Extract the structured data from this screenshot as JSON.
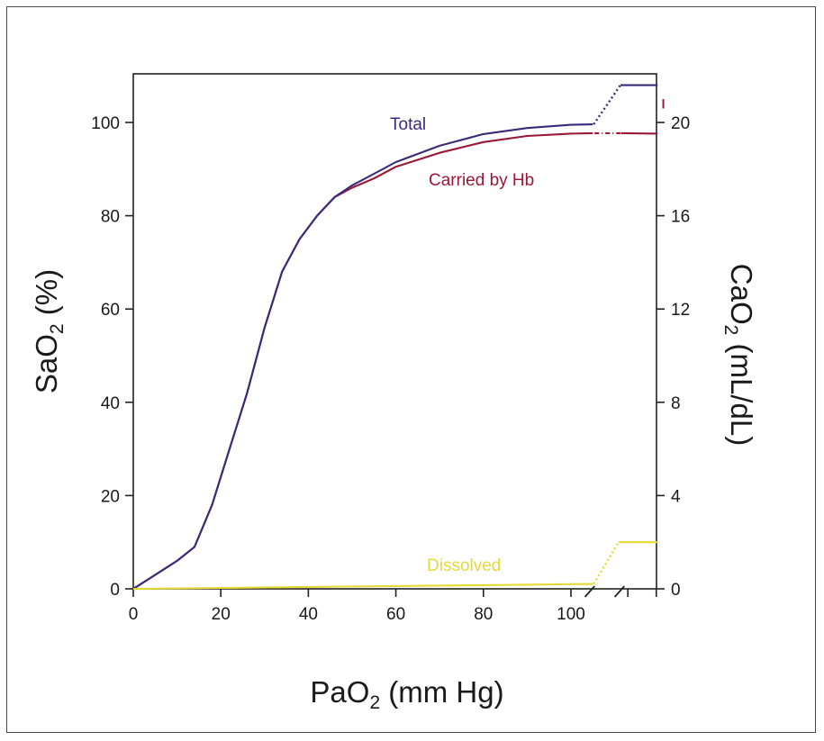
{
  "chart_data": {
    "type": "line",
    "y_axis_left": {
      "label_main": "SaO",
      "label_sub": "2",
      "label_rest": " (%)",
      "ticks": [
        0,
        20,
        40,
        60,
        80,
        100
      ],
      "ylim": [
        0,
        110
      ]
    },
    "y_axis_right": {
      "label_main": "CaO",
      "label_sub": "2",
      "label_rest": " (mL/dL)",
      "ticks": [
        0,
        4,
        8,
        12,
        16,
        20
      ],
      "ylim": [
        0,
        22
      ]
    },
    "x_axis": {
      "label_main": "PaO",
      "label_sub": "2",
      "label_rest": " (mm Hg)",
      "ticks": [
        0,
        20,
        40,
        60,
        80,
        100
      ],
      "xlim": [
        0,
        120
      ]
    },
    "grid": false,
    "legend": "none",
    "series": [
      {
        "name": "Total",
        "color": "#3a2a7a",
        "x": [
          0,
          5,
          10,
          14,
          18,
          22,
          26,
          30,
          34,
          38,
          42,
          46,
          50,
          55,
          60,
          70,
          80,
          90,
          100,
          105
        ],
        "y": [
          0,
          3,
          6,
          9,
          18,
          30,
          42,
          56,
          68,
          75,
          80,
          84,
          86.5,
          89,
          91.5,
          95,
          97.5,
          98.8,
          99.5,
          99.6
        ],
        "ext_label": ""
      },
      {
        "name": "Carried by Hb",
        "color": "#9a1838",
        "x": [
          0,
          5,
          10,
          14,
          18,
          22,
          26,
          30,
          34,
          38,
          42,
          46,
          50,
          55,
          60,
          70,
          80,
          90,
          100,
          105
        ],
        "y": [
          0,
          3,
          6,
          9,
          18,
          30,
          42,
          56,
          68,
          75,
          80,
          84,
          86,
          88,
          90.5,
          93.5,
          95.8,
          97.1,
          97.6,
          97.7
        ],
        "ext_label": ""
      },
      {
        "name": "Dissolved",
        "color": "#e6da3a",
        "x": [
          0,
          20,
          40,
          60,
          80,
          100,
          105
        ],
        "y": [
          0,
          0.2,
          0.4,
          0.6,
          0.8,
          1.0,
          1.05
        ],
        "ext_label": ""
      }
    ],
    "broken_axis_extension": {
      "total_level_CaO": 21.6,
      "hb_level_CaO": 19.5,
      "dissolved_level_CaO": 2.0
    }
  }
}
